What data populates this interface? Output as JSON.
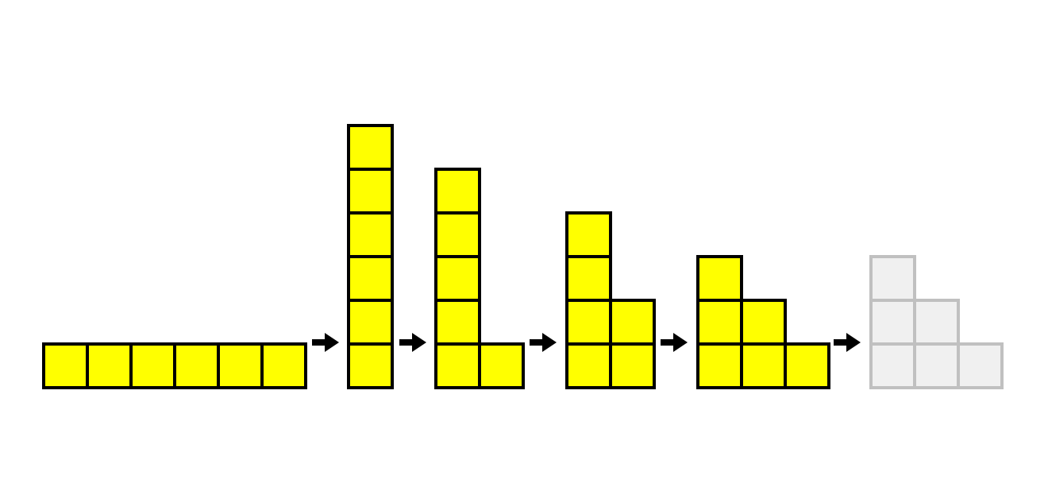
{
  "colors": {
    "background": "#ffffff",
    "active_fill": "#ffff00",
    "active_stroke": "#000000",
    "ghost_fill": "#f0f0f0",
    "ghost_stroke": "#c0c0c0",
    "arrow": "#000000"
  },
  "diagram": {
    "stages": [
      {
        "id": "stage-1",
        "style": "active",
        "columns": [
          1,
          1,
          1,
          1,
          1,
          1
        ]
      },
      {
        "id": "stage-2",
        "style": "active",
        "columns": [
          6
        ]
      },
      {
        "id": "stage-3",
        "style": "active",
        "columns": [
          5,
          1
        ]
      },
      {
        "id": "stage-4",
        "style": "active",
        "columns": [
          4,
          2
        ]
      },
      {
        "id": "stage-5",
        "style": "active",
        "columns": [
          3,
          2,
          1
        ]
      },
      {
        "id": "stage-6",
        "style": "ghost",
        "columns": [
          3,
          2,
          1
        ]
      }
    ],
    "arrows": 5,
    "arrow_icon": "right-arrow-icon"
  }
}
